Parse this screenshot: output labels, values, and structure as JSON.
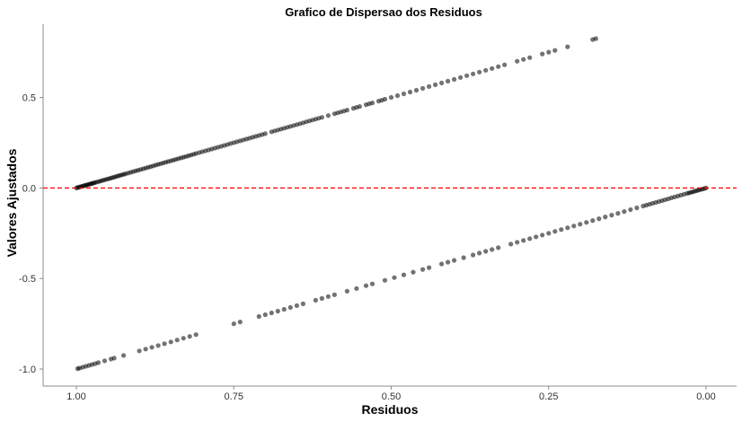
{
  "chart_data": {
    "type": "scatter",
    "title": "Grafico de Dispersao dos Residuos",
    "xlabel": "Residuos",
    "ylabel": "Valores Ajustados",
    "xlim": [
      1.0,
      0.0
    ],
    "x_reversed": true,
    "ylim": [
      -1.05,
      0.9
    ],
    "x_ticks": [
      1.0,
      0.75,
      0.5,
      0.25,
      0.0
    ],
    "x_tick_labels": [
      "1.00",
      "0.75",
      "0.50",
      "0.25",
      "0.00"
    ],
    "y_ticks": [
      0.5,
      0.0,
      -0.5,
      -1.0
    ],
    "y_tick_labels": [
      "0.5",
      "0.0",
      "-0.5",
      "-1.0"
    ],
    "grid": false,
    "point_color": "#000000",
    "point_opacity": 0.55,
    "reference_line": {
      "y": 0.0,
      "color": "#ff0000",
      "style": "dashed"
    },
    "series": [
      {
        "x": [
          1.0,
          0.998,
          0.996,
          0.994,
          0.992,
          0.99,
          0.988,
          0.986,
          0.984,
          0.982,
          0.98,
          0.978,
          0.976,
          0.974,
          0.972,
          0.97,
          0.967,
          0.964,
          0.961,
          0.958,
          0.955,
          0.952,
          0.949,
          0.946,
          0.943,
          0.94,
          0.937,
          0.934,
          0.931,
          0.928,
          0.925,
          0.922,
          0.918,
          0.914,
          0.91,
          0.906,
          0.902,
          0.898,
          0.894,
          0.89,
          0.886,
          0.882,
          0.878,
          0.874,
          0.87,
          0.866,
          0.862,
          0.858,
          0.854,
          0.85,
          0.846,
          0.842,
          0.838,
          0.834,
          0.83,
          0.826,
          0.822,
          0.818,
          0.814,
          0.81,
          0.805,
          0.8,
          0.795,
          0.79,
          0.785,
          0.78,
          0.775,
          0.77,
          0.765,
          0.76,
          0.755,
          0.75,
          0.745,
          0.74,
          0.735,
          0.73,
          0.725,
          0.72,
          0.715,
          0.71,
          0.705,
          0.7,
          0.69,
          0.685,
          0.68,
          0.675,
          0.67,
          0.665,
          0.66,
          0.655,
          0.65,
          0.645,
          0.64,
          0.635,
          0.63,
          0.625,
          0.62,
          0.615,
          0.61,
          0.6,
          0.59,
          0.585,
          0.58,
          0.575,
          0.57,
          0.56,
          0.555,
          0.55,
          0.54,
          0.535,
          0.53,
          0.52,
          0.515,
          0.51,
          0.5,
          0.49,
          0.48,
          0.47,
          0.46,
          0.45,
          0.44,
          0.43,
          0.42,
          0.41,
          0.4,
          0.39,
          0.38,
          0.37,
          0.36,
          0.35,
          0.34,
          0.33,
          0.32,
          0.3,
          0.29,
          0.28,
          0.26,
          0.25,
          0.24,
          0.22,
          0.18,
          0.175
        ],
        "y": [
          0.0,
          0.002,
          0.004,
          0.006,
          0.008,
          0.01,
          0.012,
          0.014,
          0.016,
          0.018,
          0.02,
          0.022,
          0.024,
          0.026,
          0.028,
          0.03,
          0.033,
          0.036,
          0.039,
          0.042,
          0.045,
          0.048,
          0.051,
          0.054,
          0.057,
          0.06,
          0.063,
          0.066,
          0.069,
          0.072,
          0.075,
          0.078,
          0.082,
          0.086,
          0.09,
          0.094,
          0.098,
          0.102,
          0.106,
          0.11,
          0.114,
          0.118,
          0.122,
          0.126,
          0.13,
          0.134,
          0.138,
          0.142,
          0.146,
          0.15,
          0.154,
          0.158,
          0.162,
          0.166,
          0.17,
          0.174,
          0.178,
          0.182,
          0.186,
          0.19,
          0.195,
          0.2,
          0.205,
          0.21,
          0.215,
          0.22,
          0.225,
          0.23,
          0.235,
          0.24,
          0.245,
          0.25,
          0.255,
          0.26,
          0.265,
          0.27,
          0.275,
          0.28,
          0.285,
          0.29,
          0.295,
          0.3,
          0.31,
          0.315,
          0.32,
          0.325,
          0.33,
          0.335,
          0.34,
          0.345,
          0.35,
          0.355,
          0.36,
          0.365,
          0.37,
          0.375,
          0.38,
          0.385,
          0.39,
          0.4,
          0.41,
          0.415,
          0.42,
          0.425,
          0.43,
          0.44,
          0.445,
          0.45,
          0.46,
          0.465,
          0.47,
          0.48,
          0.485,
          0.49,
          0.5,
          0.51,
          0.52,
          0.53,
          0.54,
          0.55,
          0.56,
          0.57,
          0.58,
          0.59,
          0.6,
          0.61,
          0.62,
          0.63,
          0.64,
          0.65,
          0.66,
          0.67,
          0.68,
          0.7,
          0.71,
          0.72,
          0.74,
          0.75,
          0.76,
          0.78,
          0.82,
          0.825
        ]
      },
      {
        "x": [
          0.998,
          0.995,
          0.99,
          0.985,
          0.98,
          0.975,
          0.97,
          0.965,
          0.955,
          0.945,
          0.94,
          0.925,
          0.9,
          0.89,
          0.88,
          0.87,
          0.86,
          0.85,
          0.84,
          0.83,
          0.82,
          0.81,
          0.75,
          0.74,
          0.71,
          0.7,
          0.69,
          0.68,
          0.67,
          0.66,
          0.65,
          0.64,
          0.62,
          0.61,
          0.6,
          0.59,
          0.57,
          0.555,
          0.54,
          0.53,
          0.51,
          0.495,
          0.48,
          0.465,
          0.45,
          0.44,
          0.42,
          0.41,
          0.4,
          0.385,
          0.37,
          0.36,
          0.35,
          0.34,
          0.33,
          0.31,
          0.3,
          0.29,
          0.28,
          0.27,
          0.26,
          0.25,
          0.24,
          0.23,
          0.22,
          0.21,
          0.2,
          0.19,
          0.18,
          0.17,
          0.16,
          0.15,
          0.14,
          0.13,
          0.12,
          0.11,
          0.1,
          0.095,
          0.09,
          0.085,
          0.08,
          0.075,
          0.07,
          0.065,
          0.06,
          0.055,
          0.05,
          0.045,
          0.04,
          0.035,
          0.03,
          0.027,
          0.024,
          0.021,
          0.018,
          0.015,
          0.012,
          0.009,
          0.006,
          0.003,
          0.0
        ],
        "y": [
          -0.998,
          -0.995,
          -0.99,
          -0.985,
          -0.98,
          -0.975,
          -0.97,
          -0.965,
          -0.955,
          -0.945,
          -0.94,
          -0.925,
          -0.9,
          -0.89,
          -0.88,
          -0.87,
          -0.86,
          -0.85,
          -0.84,
          -0.83,
          -0.82,
          -0.81,
          -0.75,
          -0.74,
          -0.71,
          -0.7,
          -0.69,
          -0.68,
          -0.67,
          -0.66,
          -0.65,
          -0.64,
          -0.62,
          -0.61,
          -0.6,
          -0.59,
          -0.57,
          -0.555,
          -0.54,
          -0.53,
          -0.51,
          -0.495,
          -0.48,
          -0.465,
          -0.45,
          -0.44,
          -0.42,
          -0.41,
          -0.4,
          -0.385,
          -0.37,
          -0.36,
          -0.35,
          -0.34,
          -0.33,
          -0.31,
          -0.3,
          -0.29,
          -0.28,
          -0.27,
          -0.26,
          -0.25,
          -0.24,
          -0.23,
          -0.22,
          -0.21,
          -0.2,
          -0.19,
          -0.18,
          -0.17,
          -0.16,
          -0.15,
          -0.14,
          -0.13,
          -0.12,
          -0.11,
          -0.1,
          -0.095,
          -0.09,
          -0.085,
          -0.08,
          -0.075,
          -0.07,
          -0.065,
          -0.06,
          -0.055,
          -0.05,
          -0.045,
          -0.04,
          -0.035,
          -0.03,
          -0.027,
          -0.024,
          -0.021,
          -0.018,
          -0.015,
          -0.012,
          -0.009,
          -0.006,
          -0.003,
          0.0
        ]
      }
    ]
  }
}
